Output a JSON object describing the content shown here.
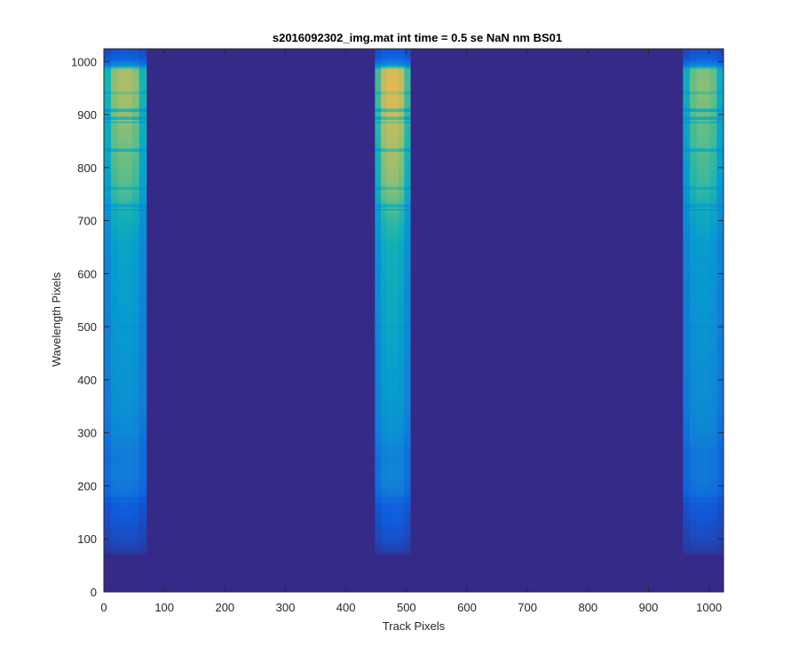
{
  "chart_data": {
    "type": "heatmap",
    "title": "s2016092302_img.mat int time = 0.5 se  NaN nm BS01",
    "xlabel": "Track Pixels",
    "ylabel": "Wavelength Pixels",
    "xlim": [
      0,
      1024
    ],
    "ylim": [
      0,
      1024
    ],
    "xticks": [
      "0",
      "100",
      "200",
      "300",
      "400",
      "500",
      "600",
      "700",
      "800",
      "900",
      "1000"
    ],
    "yticks": [
      "0",
      "100",
      "200",
      "300",
      "400",
      "500",
      "600",
      "700",
      "800",
      "900",
      "1000"
    ],
    "colormap": "parula",
    "background_color": "#352a87",
    "bands": [
      {
        "x_start": 0,
        "x_end": 70,
        "peak_scale": 0.9
      },
      {
        "x_start": 448,
        "x_end": 506,
        "peak_scale": 1.0
      },
      {
        "x_start": 957,
        "x_end": 1024,
        "peak_scale": 0.84
      }
    ],
    "profile": [
      {
        "y": 70,
        "v": 0.05
      },
      {
        "y": 100,
        "v": 0.12
      },
      {
        "y": 160,
        "v": 0.18
      },
      {
        "y": 190,
        "v": 0.3
      },
      {
        "y": 220,
        "v": 0.34
      },
      {
        "y": 260,
        "v": 0.33
      },
      {
        "y": 300,
        "v": 0.4
      },
      {
        "y": 350,
        "v": 0.45
      },
      {
        "y": 420,
        "v": 0.47
      },
      {
        "y": 500,
        "v": 0.5
      },
      {
        "y": 580,
        "v": 0.52
      },
      {
        "y": 650,
        "v": 0.54
      },
      {
        "y": 700,
        "v": 0.6
      },
      {
        "y": 760,
        "v": 0.72
      },
      {
        "y": 820,
        "v": 0.76
      },
      {
        "y": 880,
        "v": 0.8
      },
      {
        "y": 950,
        "v": 0.86
      },
      {
        "y": 985,
        "v": 0.84
      },
      {
        "y": 993,
        "v": 0.4
      },
      {
        "y": 1005,
        "v": 0.2
      },
      {
        "y": 1024,
        "v": 0.12
      }
    ],
    "absorption_lines": [
      {
        "y": 720,
        "depth": 0.2
      },
      {
        "y": 727,
        "depth": 0.15
      },
      {
        "y": 760,
        "depth": 0.12
      },
      {
        "y": 833,
        "depth": 0.18
      },
      {
        "y": 885,
        "depth": 0.16
      },
      {
        "y": 893,
        "depth": 0.2
      },
      {
        "y": 908,
        "depth": 0.22
      },
      {
        "y": 940,
        "depth": 0.1
      },
      {
        "y": 175,
        "depth": 0.15
      },
      {
        "y": 165,
        "depth": 0.12
      },
      {
        "y": 120,
        "depth": 0.06
      },
      {
        "y": 500,
        "depth": 0.05
      }
    ]
  }
}
